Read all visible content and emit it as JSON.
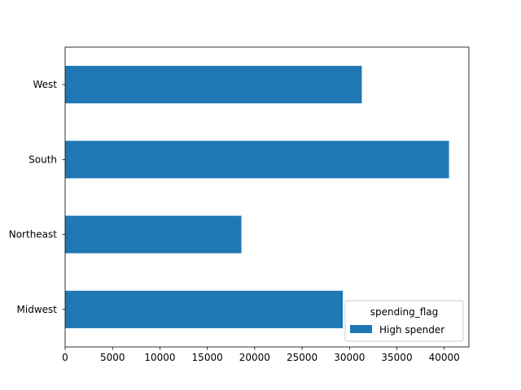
{
  "chart_data": {
    "type": "bar",
    "orientation": "horizontal",
    "categories": [
      "Midwest",
      "Northeast",
      "South",
      "West"
    ],
    "series": [
      {
        "name": "High spender",
        "values": [
          29300,
          18600,
          40500,
          31300
        ],
        "color": "#1f77b4"
      }
    ],
    "title": "",
    "xlabel": "",
    "ylabel": "",
    "xlim": [
      0,
      42600
    ],
    "xticks": [
      0,
      5000,
      10000,
      15000,
      20000,
      25000,
      30000,
      35000,
      40000
    ],
    "grid": false,
    "legend": {
      "title": "spending_flag",
      "placement": "lower-right"
    }
  }
}
